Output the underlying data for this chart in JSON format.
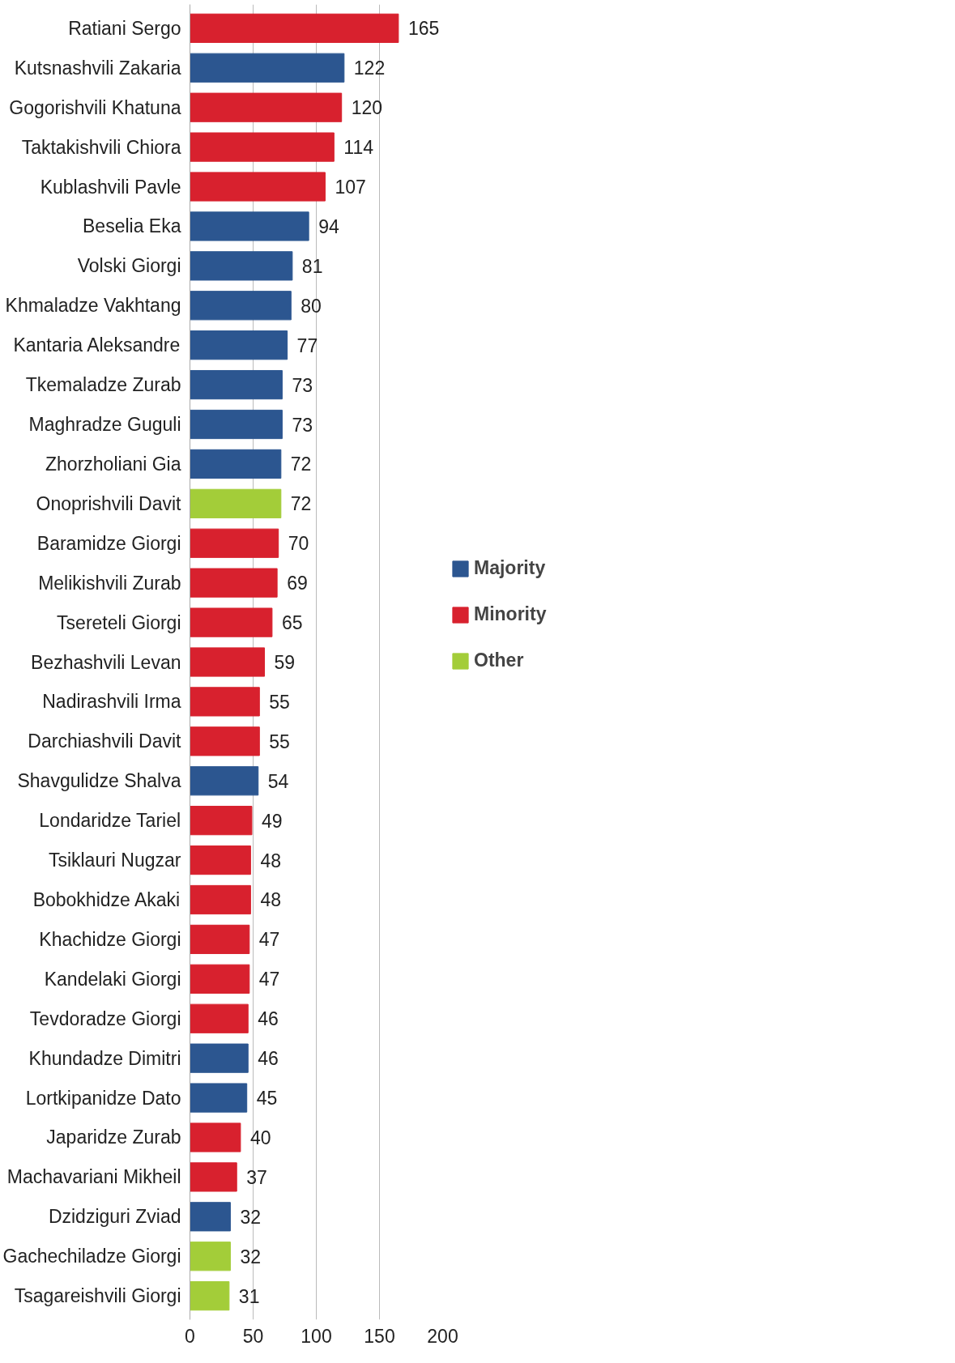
{
  "chart_data": {
    "type": "bar",
    "orientation": "horizontal",
    "stacked": true,
    "categories": [
      "Ratiani Sergo",
      "Kutsnashvili Zakaria",
      "Gogorishvili Khatuna",
      "Taktakishvili Chiora",
      "Kublashvili Pavle",
      "Beselia Eka",
      "Volski Giorgi",
      "Khmaladze Vakhtang",
      "Kantaria Aleksandre",
      "Tkemaladze Zurab",
      "Maghradze Guguli",
      "Zhorzholiani Gia",
      "Onoprishvili Davit",
      "Baramidze Giorgi",
      "Melikishvili Zurab",
      "Tsereteli Giorgi",
      "Bezhashvili Levan",
      "Nadirashvili Irma",
      "Darchiashvili Davit",
      "Shavgulidze Shalva",
      "Londaridze Tariel",
      "Tsiklauri Nugzar",
      "Bobokhidze Akaki",
      "Khachidze Giorgi",
      "Kandelaki Giorgi",
      "Tevdoradze Giorgi",
      "Khundadze Dimitri",
      "Lortkipanidze Dato",
      "Japaridze Zurab",
      "Machavariani Mikheil",
      "Dzidziguri Zviad",
      "Gachechiladze Giorgi",
      "Tsagareishvili Giorgi"
    ],
    "series": [
      {
        "name": "Majority",
        "color": "#2c5690",
        "values": [
          null,
          122,
          null,
          null,
          null,
          94,
          81,
          80,
          77,
          73,
          73,
          72,
          null,
          null,
          null,
          null,
          null,
          null,
          null,
          54,
          null,
          null,
          null,
          null,
          null,
          null,
          46,
          45,
          null,
          null,
          32,
          null,
          null
        ]
      },
      {
        "name": "Minority",
        "color": "#d8212e",
        "values": [
          165,
          null,
          120,
          114,
          107,
          null,
          null,
          null,
          null,
          null,
          null,
          null,
          null,
          70,
          69,
          65,
          59,
          55,
          55,
          null,
          49,
          48,
          48,
          47,
          47,
          46,
          null,
          null,
          40,
          37,
          null,
          null,
          null
        ]
      },
      {
        "name": "Other",
        "color": "#a3cd39",
        "values": [
          null,
          null,
          null,
          null,
          null,
          null,
          null,
          null,
          null,
          null,
          null,
          null,
          72,
          null,
          null,
          null,
          null,
          null,
          null,
          null,
          null,
          null,
          null,
          null,
          null,
          null,
          null,
          null,
          null,
          null,
          null,
          32,
          31
        ]
      }
    ],
    "xlim": [
      0,
      200
    ],
    "xticks": [
      0,
      50,
      100,
      150,
      200
    ],
    "grid": "x",
    "legend": "right",
    "data_labels": true
  }
}
